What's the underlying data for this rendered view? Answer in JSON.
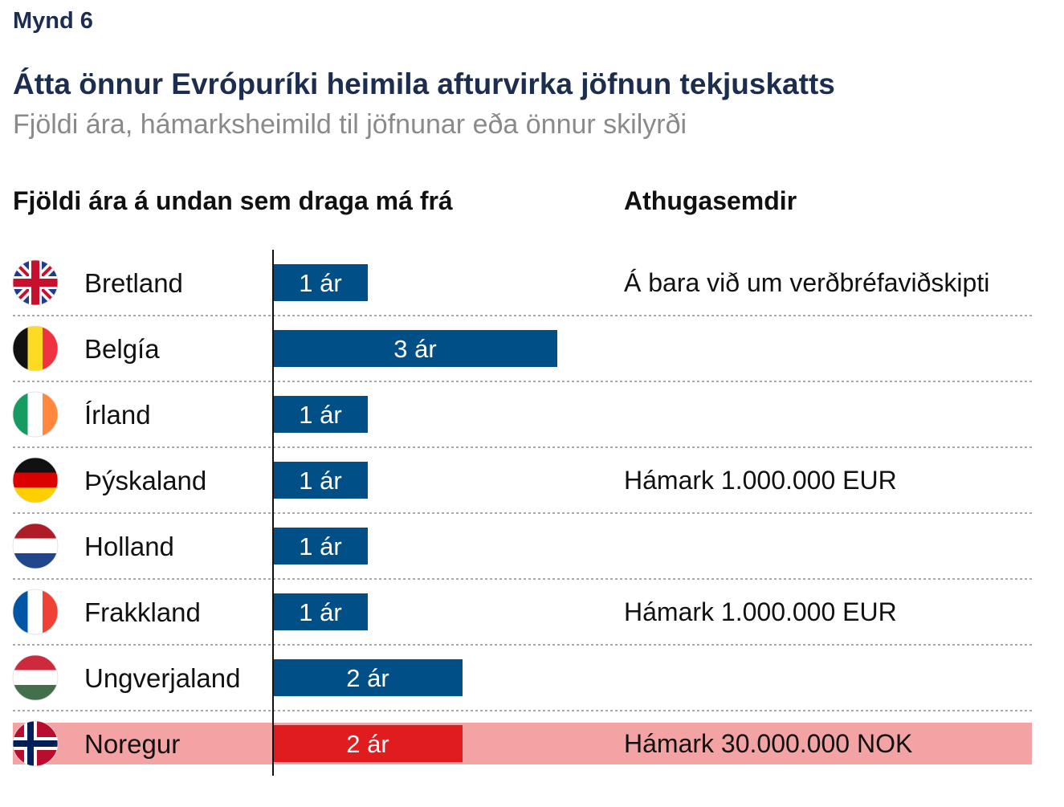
{
  "figure_label": "Mynd 6",
  "chart_data": {
    "type": "bar",
    "orientation": "horizontal",
    "title": "Átta önnur Evrópuríki heimila afturvirka jöfnun tekjuskatts",
    "subtitle": "Fjöldi ára, hámarksheimild til jöfnunar eða önnur skilyrði",
    "value_column_header": "Fjöldi ára á undan sem draga má frá",
    "notes_column_header": "Athugasemdir",
    "unit_label": "ár",
    "xlim": [
      0,
      3
    ],
    "grid": false,
    "categories": [
      "Bretland",
      "Belgía",
      "Írland",
      "Þýskaland",
      "Holland",
      "Frakkland",
      "Ungverjaland",
      "Noregur"
    ],
    "values": [
      1,
      3,
      1,
      1,
      1,
      1,
      2,
      2
    ],
    "value_labels": [
      "1 ár",
      "3 ár",
      "1 ár",
      "1 ár",
      "1 ár",
      "1 ár",
      "2 ár",
      "2 ár"
    ],
    "notes": [
      "Á bara við um verðbréfaviðskipti",
      "",
      "",
      "Hámark 1.000.000 EUR",
      "",
      "Hámark 1.000.000 EUR",
      "",
      "Hámark 30.000.000 NOK"
    ],
    "flags": [
      "uk-flag-icon",
      "belgium-flag-icon",
      "ireland-flag-icon",
      "germany-flag-icon",
      "netherlands-flag-icon",
      "france-flag-icon",
      "hungary-flag-icon",
      "norway-flag-icon"
    ],
    "highlight_index": 7,
    "colors": {
      "bar": "#004f86",
      "bar_highlight": "#e11c1f",
      "row_highlight": "#f4a3a4",
      "separator": "#555555",
      "axis": "#111111"
    }
  }
}
